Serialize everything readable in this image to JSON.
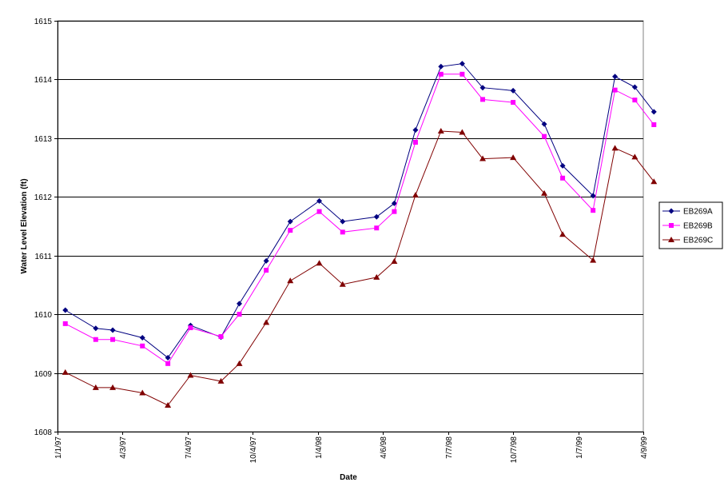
{
  "chart_data": {
    "type": "line",
    "xlabel": "Date",
    "ylabel": "Water Level Elevation (ft)",
    "x_axis": {
      "scale": "date",
      "range": [
        "1997-01-01",
        "1999-04-09"
      ],
      "ticks": [
        {
          "date": "1997-01-01",
          "label": "1/1/97"
        },
        {
          "date": "1997-04-03",
          "label": "4/3/97"
        },
        {
          "date": "1997-07-04",
          "label": "7/4/97"
        },
        {
          "date": "1997-10-04",
          "label": "10/4/97"
        },
        {
          "date": "1998-01-04",
          "label": "1/4/98"
        },
        {
          "date": "1998-04-06",
          "label": "4/6/98"
        },
        {
          "date": "1998-07-07",
          "label": "7/7/98"
        },
        {
          "date": "1998-10-07",
          "label": "10/7/98"
        },
        {
          "date": "1999-01-07",
          "label": "1/7/99"
        },
        {
          "date": "1999-04-09",
          "label": "4/9/99"
        }
      ]
    },
    "y_axis": {
      "range": [
        1608,
        1615
      ],
      "ticks": [
        1608,
        1609,
        1610,
        1611,
        1612,
        1613,
        1614,
        1615
      ],
      "gridlines": true
    },
    "legend_position": "right",
    "series": [
      {
        "name": "EB269A",
        "color": "#000080",
        "marker": "diamond",
        "points": [
          {
            "x": "1997-01-12",
            "y": 1610.07
          },
          {
            "x": "1997-02-24",
            "y": 1609.76
          },
          {
            "x": "1997-03-20",
            "y": 1609.73
          },
          {
            "x": "1997-05-01",
            "y": 1609.6
          },
          {
            "x": "1997-06-06",
            "y": 1609.26
          },
          {
            "x": "1997-07-08",
            "y": 1609.81
          },
          {
            "x": "1997-08-20",
            "y": 1609.61
          },
          {
            "x": "1997-09-15",
            "y": 1610.18
          },
          {
            "x": "1997-10-23",
            "y": 1610.91
          },
          {
            "x": "1997-11-26",
            "y": 1611.58
          },
          {
            "x": "1998-01-06",
            "y": 1611.93
          },
          {
            "x": "1998-02-08",
            "y": 1611.58
          },
          {
            "x": "1998-03-28",
            "y": 1611.66
          },
          {
            "x": "1998-04-22",
            "y": 1611.89
          },
          {
            "x": "1998-05-22",
            "y": 1613.14
          },
          {
            "x": "1998-06-27",
            "y": 1614.22
          },
          {
            "x": "1998-07-27",
            "y": 1614.27
          },
          {
            "x": "1998-08-25",
            "y": 1613.86
          },
          {
            "x": "1998-10-07",
            "y": 1613.81
          },
          {
            "x": "1998-11-20",
            "y": 1613.24
          },
          {
            "x": "1998-12-16",
            "y": 1612.53
          },
          {
            "x": "1999-01-28",
            "y": 1612.02
          },
          {
            "x": "1999-02-28",
            "y": 1614.05
          },
          {
            "x": "1999-03-28",
            "y": 1613.87
          },
          {
            "x": "1999-04-24",
            "y": 1613.45
          }
        ]
      },
      {
        "name": "EB269B",
        "color": "#FF00FF",
        "marker": "square",
        "points": [
          {
            "x": "1997-01-12",
            "y": 1609.84
          },
          {
            "x": "1997-02-24",
            "y": 1609.57
          },
          {
            "x": "1997-03-20",
            "y": 1609.57
          },
          {
            "x": "1997-05-01",
            "y": 1609.46
          },
          {
            "x": "1997-06-06",
            "y": 1609.16
          },
          {
            "x": "1997-07-08",
            "y": 1609.77
          },
          {
            "x": "1997-08-20",
            "y": 1609.62
          },
          {
            "x": "1997-09-15",
            "y": 1610.0
          },
          {
            "x": "1997-10-23",
            "y": 1610.75
          },
          {
            "x": "1997-11-26",
            "y": 1611.43
          },
          {
            "x": "1998-01-06",
            "y": 1611.75
          },
          {
            "x": "1998-02-08",
            "y": 1611.4
          },
          {
            "x": "1998-03-28",
            "y": 1611.47
          },
          {
            "x": "1998-04-22",
            "y": 1611.75
          },
          {
            "x": "1998-05-22",
            "y": 1612.93
          },
          {
            "x": "1998-06-27",
            "y": 1614.09
          },
          {
            "x": "1998-07-27",
            "y": 1614.09
          },
          {
            "x": "1998-08-25",
            "y": 1613.66
          },
          {
            "x": "1998-10-07",
            "y": 1613.61
          },
          {
            "x": "1998-11-20",
            "y": 1613.03
          },
          {
            "x": "1998-12-16",
            "y": 1612.32
          },
          {
            "x": "1999-01-28",
            "y": 1611.77
          },
          {
            "x": "1999-02-28",
            "y": 1613.82
          },
          {
            "x": "1999-03-28",
            "y": 1613.65
          },
          {
            "x": "1999-04-24",
            "y": 1613.23
          }
        ]
      },
      {
        "name": "EB269C",
        "color": "#800000",
        "marker": "triangle",
        "points": [
          {
            "x": "1997-01-12",
            "y": 1609.01
          },
          {
            "x": "1997-02-24",
            "y": 1608.75
          },
          {
            "x": "1997-03-20",
            "y": 1608.75
          },
          {
            "x": "1997-05-01",
            "y": 1608.66
          },
          {
            "x": "1997-06-06",
            "y": 1608.45
          },
          {
            "x": "1997-07-08",
            "y": 1608.96
          },
          {
            "x": "1997-08-20",
            "y": 1608.86
          },
          {
            "x": "1997-09-15",
            "y": 1609.16
          },
          {
            "x": "1997-10-23",
            "y": 1609.86
          },
          {
            "x": "1997-11-26",
            "y": 1610.57
          },
          {
            "x": "1998-01-06",
            "y": 1610.87
          },
          {
            "x": "1998-02-08",
            "y": 1610.51
          },
          {
            "x": "1998-03-28",
            "y": 1610.63
          },
          {
            "x": "1998-04-22",
            "y": 1610.9
          },
          {
            "x": "1998-05-22",
            "y": 1612.03
          },
          {
            "x": "1998-06-27",
            "y": 1613.12
          },
          {
            "x": "1998-07-27",
            "y": 1613.1
          },
          {
            "x": "1998-08-25",
            "y": 1612.65
          },
          {
            "x": "1998-10-07",
            "y": 1612.67
          },
          {
            "x": "1998-11-20",
            "y": 1612.06
          },
          {
            "x": "1998-12-16",
            "y": 1611.36
          },
          {
            "x": "1999-01-28",
            "y": 1610.92
          },
          {
            "x": "1999-02-28",
            "y": 1612.83
          },
          {
            "x": "1999-03-28",
            "y": 1612.68
          },
          {
            "x": "1999-04-24",
            "y": 1612.26
          }
        ]
      }
    ]
  }
}
